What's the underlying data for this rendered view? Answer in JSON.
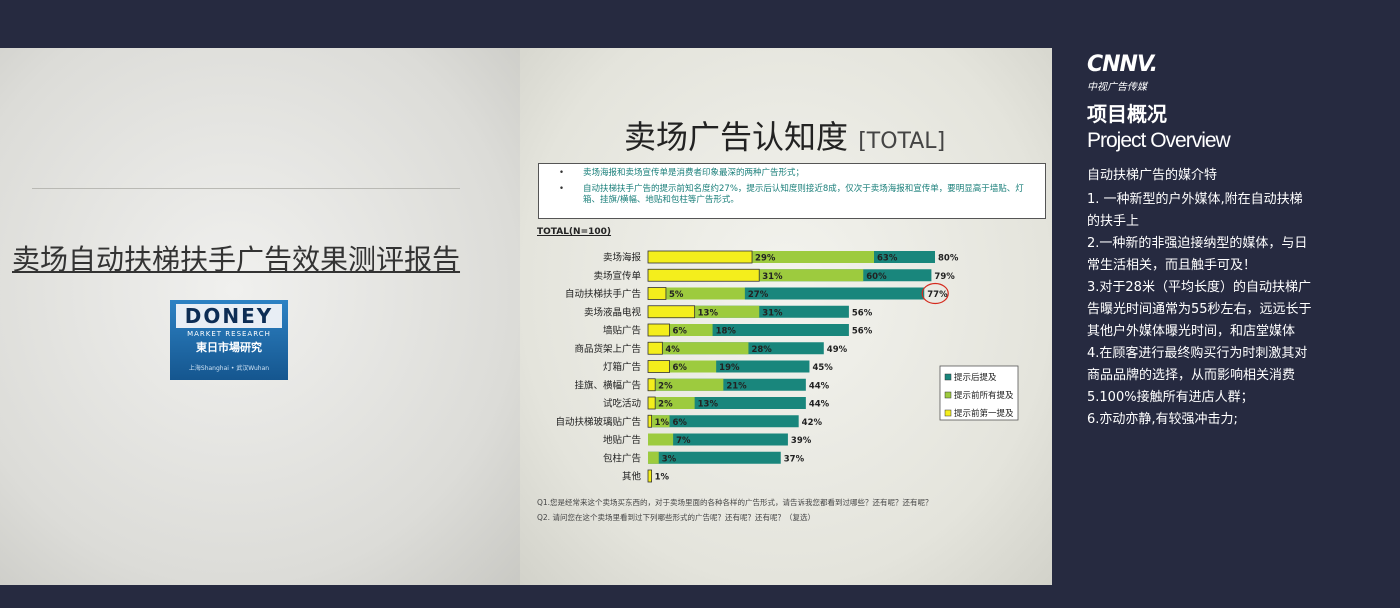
{
  "slide": {
    "title": "卖场自动扶梯扶手广告效果测评报告",
    "logo": {
      "name": "DONEY",
      "subtitle": "MARKET RESEARCH",
      "chinese": "東日市場研究",
      "cities": "上海Shanghai • 武汉Wuhan"
    }
  },
  "chart_data": {
    "type": "bar",
    "orientation": "horizontal",
    "overlap": true,
    "title": "卖场广告认知度",
    "title_suffix": "[TOTAL]",
    "notes": [
      "卖场海报和卖场宣传单是消费者印象最深的两种广告形式；",
      "自动扶梯扶手广告的提示前知名度约27%，提示后认知度则接近8成，仅次于卖场海报和宣传单，要明显高于墙贴、灯箱、挂旗/横幅、地贴和包柱等广告形式。"
    ],
    "sample": "TOTAL(N=100)",
    "categories": [
      "卖场海报",
      "卖场宣传单",
      "自动扶梯扶手广告",
      "卖场液晶电视",
      "墙贴广告",
      "商品货架上广告",
      "灯箱广告",
      "挂旗、横幅广告",
      "试吃活动",
      "自动扶梯玻璃贴广告",
      "地贴广告",
      "包柱广告",
      "其他"
    ],
    "series": [
      {
        "name": "提示后提及",
        "color": "#19867c",
        "values": [
          80,
          79,
          77,
          56,
          56,
          49,
          45,
          44,
          44,
          42,
          39,
          37,
          null
        ],
        "value_labels": [
          "80%",
          "79%",
          "77%",
          "56%",
          "56%",
          "49%",
          "45%",
          "44%",
          "44%",
          "42%",
          "39%",
          "37%",
          null
        ]
      },
      {
        "name": "提示前所有提及",
        "color": "#9dcb3e",
        "values": [
          63,
          60,
          27,
          31,
          18,
          28,
          19,
          21,
          13,
          6,
          7,
          3,
          null
        ],
        "value_labels": [
          "63%",
          "60%",
          "27%",
          "31%",
          "18%",
          "28%",
          "19%",
          "21%",
          "13%",
          "6%",
          "7%",
          "3%",
          null
        ]
      },
      {
        "name": "提示前第一提及",
        "color": "#f4ee1c",
        "values": [
          29,
          31,
          5,
          13,
          6,
          4,
          6,
          2,
          2,
          1,
          null,
          null,
          1
        ],
        "value_labels": [
          "29%",
          "31%",
          "5%",
          "13%",
          "6%",
          "4%",
          "6%",
          "2%",
          "2%",
          "1%",
          null,
          null,
          "1%"
        ]
      }
    ],
    "highlight_category": 2,
    "legend": "right",
    "footnotes": [
      "Q1.您是经常来这个卖场买东西的，对于卖场里面的各种各样的广告形式，请告诉我您都看到过哪些？还有呢？还有呢？",
      "Q2. 请问您在这个卖场里看到过下列哪些形式的广告呢？还有呢？还有呢？（复选）"
    ]
  },
  "sidebar": {
    "brand": "CNNV.",
    "brand_cn": "中视广告传媒",
    "heading": "项目概况",
    "heading_en": "Project Overview",
    "intro": "自动扶梯广告的媒介特",
    "items": [
      "1. 一种新型的户外媒体,附在自动扶梯的扶手上",
      "2.一种新的非强迫接纳型的媒体，与日常生活相关，而且触手可及！",
      "3.对于28米（平均长度）的自动扶梯广告曝光时间通常为55秒左右，远远长于其他户外媒体曝光时间，和店堂媒体",
      "4.在顾客进行最终购买行为时刺激其对商品品牌的选择，从而影响相关消费",
      "5.100%接触所有进店人群；",
      "6.亦动亦静,有较强冲击力;"
    ]
  }
}
